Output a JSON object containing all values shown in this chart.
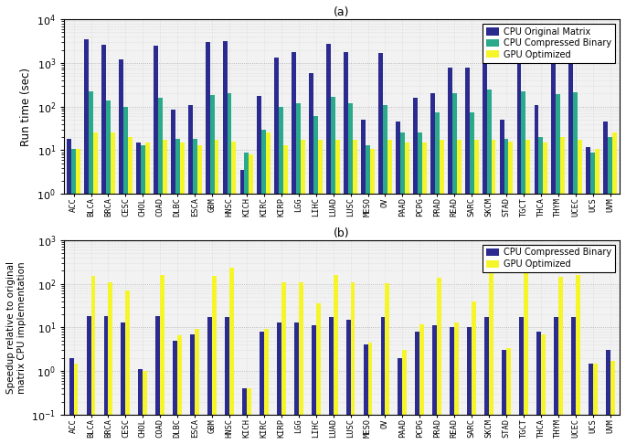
{
  "categories": [
    "ACC",
    "BLCA",
    "BRCA",
    "CESC",
    "CHOL",
    "COAD",
    "DLBC",
    "ESCA",
    "GBM",
    "HNSC",
    "KICH",
    "KIRC",
    "KIRP",
    "LGG",
    "LIHC",
    "LUAD",
    "LUSC",
    "MESO",
    "OV",
    "PAAD",
    "PCPG",
    "PRAD",
    "READ",
    "SARC",
    "SKCM",
    "STAD",
    "TGCT",
    "THCA",
    "THYM",
    "UCEC",
    "UCS",
    "UVM"
  ],
  "cpu_orig": [
    18,
    3500,
    2600,
    1200,
    15,
    2500,
    85,
    110,
    3000,
    3200,
    3.5,
    175,
    1300,
    1800,
    600,
    2700,
    1800,
    50,
    1700,
    45,
    160,
    200,
    800,
    800,
    3500,
    50,
    2700,
    110,
    2700,
    2700,
    12,
    45
  ],
  "cpu_comp": [
    11,
    220,
    140,
    100,
    13,
    160,
    18,
    18,
    180,
    200,
    9,
    30,
    100,
    120,
    60,
    170,
    120,
    13,
    110,
    25,
    25,
    75,
    200,
    75,
    250,
    18,
    220,
    20,
    190,
    210,
    9,
    20
  ],
  "gpu_opt": [
    11,
    25,
    25,
    20,
    15,
    17,
    15,
    13,
    17,
    16,
    8,
    25,
    13,
    17,
    17,
    17,
    17,
    11,
    17,
    15,
    15,
    17,
    17,
    17,
    17,
    16,
    17,
    15,
    20,
    17,
    11,
    25
  ],
  "cpu_comp_speedup": [
    2,
    18,
    18,
    13,
    1.1,
    18,
    5,
    7,
    17,
    17,
    0.4,
    8,
    13,
    13,
    11,
    17,
    15,
    4,
    17,
    2,
    8,
    11,
    10,
    10,
    17,
    3,
    17,
    8,
    17,
    17,
    1.5,
    3
  ],
  "gpu_speedup": [
    1.5,
    150,
    110,
    70,
    1,
    155,
    6.5,
    9,
    150,
    230,
    0.4,
    9,
    110,
    110,
    35,
    155,
    110,
    4.5,
    105,
    3,
    12,
    140,
    13,
    40,
    210,
    3.3,
    250,
    7,
    145,
    160,
    1.5,
    1.7
  ],
  "color_cpu_orig": "#2b2b8f",
  "color_cpu_comp": "#2aaa8a",
  "color_gpu": "#f5f52a",
  "bg_color": "#f2f2f2",
  "title_a": "(a)",
  "title_b": "(b)",
  "ylabel_a": "Run time (sec)",
  "ylabel_b": "Speedup relative to original\nmatrix CPU implementation",
  "legend_a": [
    "CPU Original Matrix",
    "CPU Compressed Binary",
    "GPU Optimized"
  ],
  "legend_b": [
    "CPU Compressed Binary",
    "GPU Optimized"
  ]
}
